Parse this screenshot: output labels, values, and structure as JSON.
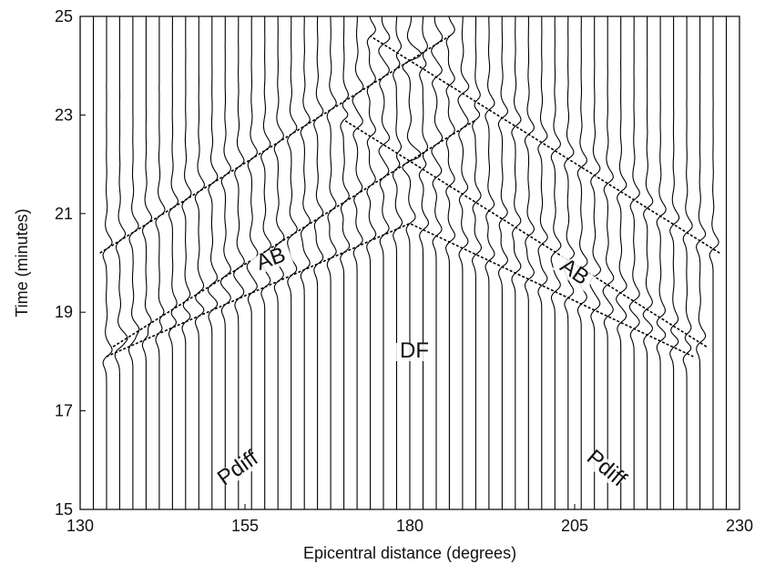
{
  "chart_data": {
    "type": "record-section",
    "xlabel": "Epicentral distance (degrees)",
    "ylabel": "Time (minutes)",
    "xlim": [
      130,
      230
    ],
    "ylim": [
      15,
      25
    ],
    "xticks": [
      130,
      155,
      180,
      205,
      230
    ],
    "yticks": [
      15,
      17,
      19,
      21,
      23,
      25
    ],
    "color": "#000000",
    "traces": [
      130,
      132,
      134,
      136,
      138,
      140,
      142,
      144,
      146,
      148,
      150,
      152,
      154,
      156,
      158,
      160,
      162,
      164,
      166,
      168,
      170,
      172,
      174,
      176,
      178,
      180,
      182,
      184,
      186,
      188,
      190,
      192,
      194,
      196,
      198,
      200,
      202,
      204,
      206,
      208,
      210,
      212,
      214,
      216,
      218,
      220,
      222,
      224,
      226,
      228,
      230
    ],
    "series": [
      {
        "x": [
          134,
          180,
          223
        ],
        "values": [
          18.1,
          20.8,
          18.1
        ]
      },
      {
        "x": [
          135,
          190
        ],
        "values": [
          18.3,
          22.9
        ]
      },
      {
        "x": [
          225,
          170
        ],
        "values": [
          18.3,
          22.9
        ]
      },
      {
        "x": [
          133,
          186
        ],
        "values": [
          20.2,
          24.6
        ]
      },
      {
        "x": [
          227,
          174
        ],
        "values": [
          20.2,
          24.6
        ]
      }
    ],
    "annotations": [
      "AB",
      "AB",
      "DF",
      "Pdiff",
      "Pdiff"
    ]
  }
}
